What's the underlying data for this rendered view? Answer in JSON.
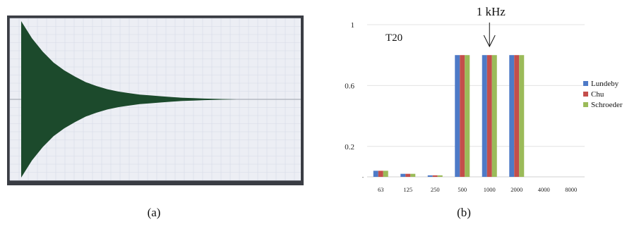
{
  "panel_a": {
    "caption": "(a)",
    "colors": {
      "frame": "#3a3d44",
      "plot_bg": "#eceef4",
      "grid": "#d6dae6",
      "waveform": "#1c4a2c",
      "center_line": "#9a9fa8"
    }
  },
  "panel_b": {
    "caption": "(b)"
  },
  "chart_data": [
    {
      "type": "area",
      "title": "",
      "xlabel": "",
      "ylabel": "",
      "x": [
        0.0,
        0.05,
        0.1,
        0.15,
        0.2,
        0.25,
        0.3,
        0.35,
        0.4,
        0.45,
        0.5,
        0.55,
        0.6,
        0.65,
        0.7,
        0.75,
        0.8,
        0.85,
        0.9,
        0.95,
        1.0
      ],
      "series": [
        {
          "values": [
            1.0,
            0.78,
            0.61,
            0.47,
            0.37,
            0.29,
            0.22,
            0.17,
            0.13,
            0.1,
            0.08,
            0.06,
            0.05,
            0.04,
            0.03,
            0.02,
            0.015,
            0.01,
            0.007,
            0.004,
            0.0
          ]
        }
      ],
      "ylim": [
        -1,
        1
      ],
      "symmetric_envelope": true,
      "grid": true
    },
    {
      "type": "bar",
      "title": "",
      "annotation": {
        "label": "1 kHz",
        "category": "1000"
      },
      "inner_label": "T20",
      "categories": [
        "63",
        "125",
        "250",
        "500",
        "1000",
        "2000",
        "4000",
        "8000"
      ],
      "series": [
        {
          "name": "Lundeby",
          "color": "#4e7ac7",
          "values": [
            0.04,
            0.02,
            0.01,
            0.8,
            0.8,
            0.8,
            0,
            0
          ]
        },
        {
          "name": "Chu",
          "color": "#c44e4b",
          "values": [
            0.04,
            0.02,
            0.01,
            0.8,
            0.8,
            0.8,
            0,
            0
          ]
        },
        {
          "name": "Schroeder",
          "color": "#9bbb59",
          "values": [
            0.04,
            0.02,
            0.01,
            0.8,
            0.8,
            0.8,
            0,
            0
          ]
        }
      ],
      "yticks": [
        "1",
        "0.6",
        "0.2"
      ],
      "ytick_values": [
        1,
        0.6,
        0.2
      ],
      "ylim": [
        0,
        1
      ],
      "xlabel": "",
      "ylabel": "",
      "grid": true,
      "legend": "right"
    }
  ]
}
